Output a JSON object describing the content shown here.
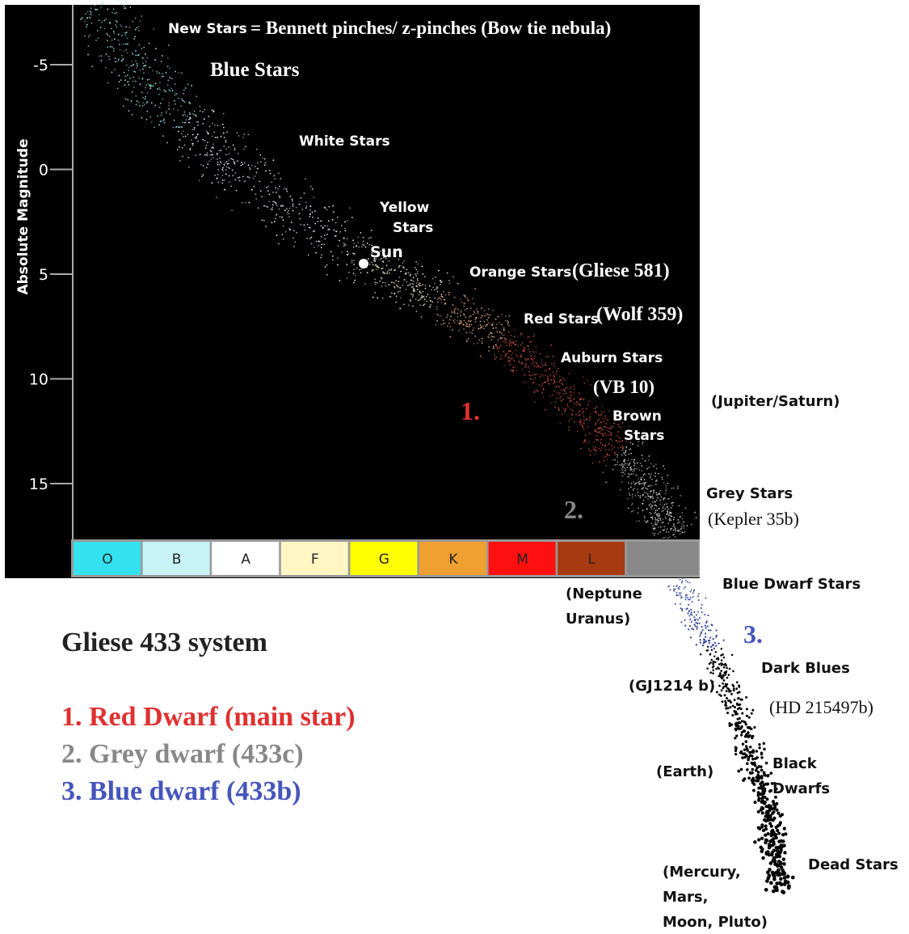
{
  "axis_label": "Absolute Magnitude",
  "yticks": [
    -5,
    0,
    5,
    10,
    15
  ],
  "spectral_classes": [
    "O",
    "B",
    "A",
    "F",
    "G",
    "K",
    "M",
    "L"
  ],
  "labels": {
    "new_stars": "New Stars",
    "bennett": "= Bennett pinches/ z-pinches (Bow tie nebula)",
    "blue_stars": "Blue Stars",
    "white_stars": "White Stars",
    "yellow_stars": [
      "Yellow",
      "Stars"
    ],
    "sun": "Sun",
    "orange_stars": "Orange Stars",
    "gliese_581": "(Gliese 581)",
    "red_stars": "Red Stars",
    "wolf_359": "(Wolf 359)",
    "auburn_stars": "Auburn Stars",
    "vb_10": "(VB 10)",
    "brown_stars": [
      "Brown",
      "Stars"
    ],
    "jupiter_saturn": "(Jupiter/Saturn)",
    "grey_stars": "Grey Stars",
    "kepler_35b": "(Kepler 35b)",
    "blue_dwarf_stars": "Blue Dwarf Stars",
    "neptune_uranus": [
      "(Neptune",
      "Uranus)"
    ],
    "dark_blues": "Dark Blues",
    "gj1214b": "(GJ1214 b)",
    "hd_215497b": "(HD 215497b)",
    "earth": "(Earth)",
    "black_dwarfs": [
      "Black",
      "Dwarfs"
    ],
    "dead_stars": "Dead Stars",
    "mercury": [
      "(Mercury,",
      "Mars,",
      "Moon, Pluto)"
    ]
  },
  "markers": [
    "1.",
    "2.",
    "3."
  ],
  "legend": {
    "title": "Gliese 433 system",
    "items": [
      "1. Red Dwarf (main star)",
      "2. Grey dwarf (433c)",
      "3. Blue dwarf (433b)"
    ]
  }
}
